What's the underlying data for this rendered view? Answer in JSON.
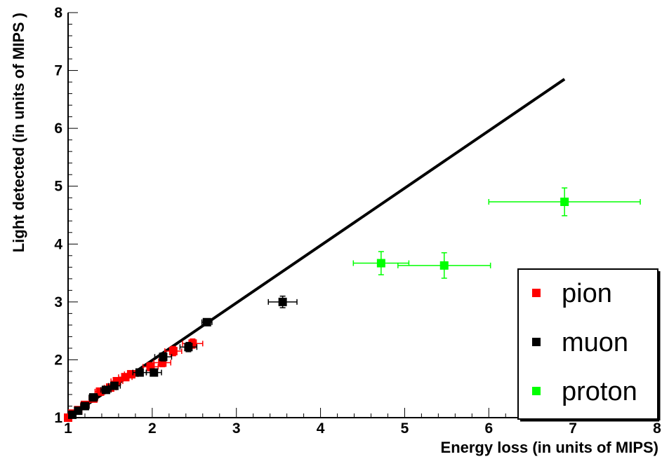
{
  "chart_data": {
    "type": "scatter",
    "title": "",
    "xlabel": "Energy loss (in units of MIPS)",
    "ylabel": "Light detected (in units of MIPS )",
    "xlim": [
      1,
      8
    ],
    "ylim": [
      1,
      8
    ],
    "x_ticks": [
      "1",
      "2",
      "3",
      "4",
      "5",
      "6",
      "7",
      "8"
    ],
    "y_ticks": [
      "1",
      "2",
      "3",
      "4",
      "5",
      "6",
      "7",
      "8"
    ],
    "grid": false,
    "legend_position": "bottom-right",
    "reference_line": {
      "x": [
        1,
        6.9
      ],
      "y": [
        1,
        6.85
      ],
      "color": "#000000"
    },
    "series": [
      {
        "name": "pion",
        "color": "#ff0000",
        "points": [
          {
            "x": 1.0,
            "y": 1.0,
            "xerr": 0.03,
            "yerr": 0.03
          },
          {
            "x": 1.05,
            "y": 1.07,
            "xerr": 0.03,
            "yerr": 0.03
          },
          {
            "x": 1.12,
            "y": 1.13,
            "xerr": 0.04,
            "yerr": 0.04
          },
          {
            "x": 1.2,
            "y": 1.22,
            "xerr": 0.05,
            "yerr": 0.04
          },
          {
            "x": 1.3,
            "y": 1.33,
            "xerr": 0.05,
            "yerr": 0.05
          },
          {
            "x": 1.38,
            "y": 1.45,
            "xerr": 0.06,
            "yerr": 0.05
          },
          {
            "x": 1.5,
            "y": 1.52,
            "xerr": 0.07,
            "yerr": 0.05
          },
          {
            "x": 1.58,
            "y": 1.63,
            "xerr": 0.07,
            "yerr": 0.06
          },
          {
            "x": 1.68,
            "y": 1.7,
            "xerr": 0.08,
            "yerr": 0.06
          },
          {
            "x": 1.75,
            "y": 1.75,
            "xerr": 0.08,
            "yerr": 0.06
          },
          {
            "x": 1.98,
            "y": 1.88,
            "xerr": 0.09,
            "yerr": 0.07
          },
          {
            "x": 2.12,
            "y": 1.95,
            "xerr": 0.1,
            "yerr": 0.07
          },
          {
            "x": 2.25,
            "y": 2.15,
            "xerr": 0.1,
            "yerr": 0.08
          },
          {
            "x": 2.48,
            "y": 2.28,
            "xerr": 0.12,
            "yerr": 0.08
          }
        ]
      },
      {
        "name": "muon",
        "color": "#000000",
        "points": [
          {
            "x": 1.05,
            "y": 1.05,
            "xerr": 0.03,
            "yerr": 0.03
          },
          {
            "x": 1.12,
            "y": 1.12,
            "xerr": 0.04,
            "yerr": 0.04
          },
          {
            "x": 1.2,
            "y": 1.2,
            "xerr": 0.05,
            "yerr": 0.04
          },
          {
            "x": 1.3,
            "y": 1.35,
            "xerr": 0.05,
            "yerr": 0.05
          },
          {
            "x": 1.45,
            "y": 1.48,
            "xerr": 0.06,
            "yerr": 0.05
          },
          {
            "x": 1.55,
            "y": 1.55,
            "xerr": 0.07,
            "yerr": 0.05
          },
          {
            "x": 1.85,
            "y": 1.78,
            "xerr": 0.08,
            "yerr": 0.06
          },
          {
            "x": 2.02,
            "y": 1.78,
            "xerr": 0.09,
            "yerr": 0.06
          },
          {
            "x": 2.13,
            "y": 2.05,
            "xerr": 0.1,
            "yerr": 0.07
          },
          {
            "x": 2.43,
            "y": 2.22,
            "xerr": 0.1,
            "yerr": 0.08
          },
          {
            "x": 2.65,
            "y": 2.65,
            "xerr": 0.06,
            "yerr": 0.06
          },
          {
            "x": 3.55,
            "y": 3.0,
            "xerr": 0.17,
            "yerr": 0.1
          }
        ]
      },
      {
        "name": "proton",
        "color": "#00ff00",
        "points": [
          {
            "x": 4.72,
            "y": 3.67,
            "xerr": 0.33,
            "yerr": 0.2
          },
          {
            "x": 5.47,
            "y": 3.63,
            "xerr": 0.55,
            "yerr": 0.22
          },
          {
            "x": 6.9,
            "y": 4.73,
            "xerr": 0.9,
            "yerr": 0.24
          }
        ]
      }
    ]
  }
}
